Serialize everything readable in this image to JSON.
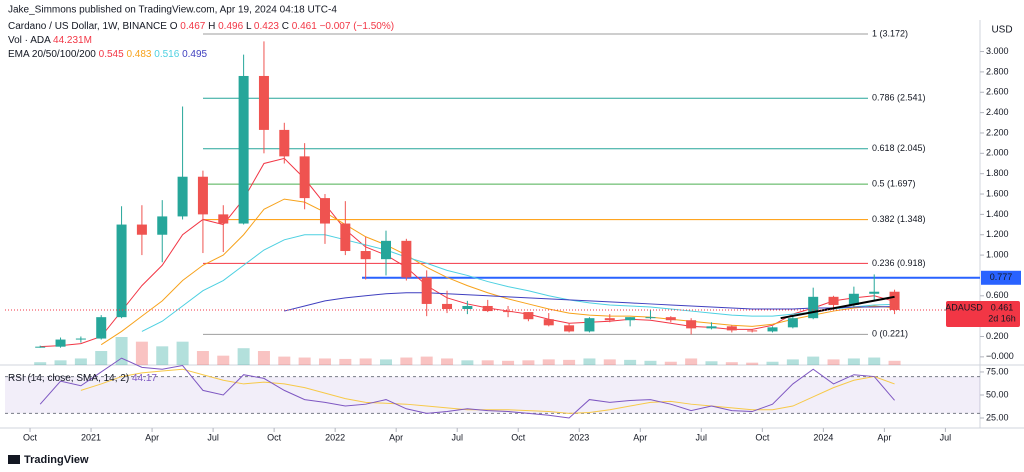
{
  "chart_data": {
    "type": "candlestick",
    "attribution": "Jake_Simmons published on TradingView.com, Apr 19, 2024 04:18 UTC-4",
    "title": "Cardano / US Dollar, 1W, BINANCE",
    "ohlc_legend": [
      {
        "label": "O",
        "value": 0.467,
        "color": "#f23645"
      },
      {
        "label": "H",
        "value": 0.496,
        "color": "#f23645"
      },
      {
        "label": "L",
        "value": 0.423,
        "color": "#f23645"
      },
      {
        "label": "C",
        "value": 0.461,
        "color": "#f23645"
      }
    ],
    "change": "−0.007 (−1.50%)",
    "volume_legend": {
      "label": "Vol · ADA",
      "value": "44.231M"
    },
    "ema_legend": {
      "label": "EMA 20/50/100/200",
      "values": [
        0.545,
        0.483,
        0.516,
        0.495
      ]
    },
    "currency": "USD",
    "footer": "TradingView",
    "xlim": [
      -1.23,
      46.7
    ],
    "xticks": [
      {
        "value": 0,
        "label": "Oct"
      },
      {
        "value": 3,
        "label": "2021"
      },
      {
        "value": 6,
        "label": "Apr"
      },
      {
        "value": 9,
        "label": "Jul"
      },
      {
        "value": 12,
        "label": "Oct"
      },
      {
        "value": 15,
        "label": "2022"
      },
      {
        "value": 18,
        "label": "Apr"
      },
      {
        "value": 21,
        "label": "Jul"
      },
      {
        "value": 24,
        "label": "Oct"
      },
      {
        "value": 27,
        "label": "2023"
      },
      {
        "value": 30,
        "label": "Apr"
      },
      {
        "value": 33,
        "label": "Jul"
      },
      {
        "value": 36,
        "label": "Oct"
      },
      {
        "value": 39,
        "label": "2024"
      },
      {
        "value": 42,
        "label": "Apr"
      },
      {
        "value": 45,
        "label": "Jul"
      }
    ],
    "ylim": [
      -0.08,
      3.31
    ],
    "yticks": [
      {
        "value": 0,
        "label": "−0.000"
      },
      {
        "value": 0.2,
        "label": "0.200"
      },
      {
        "value": 0.6,
        "label": "0.600"
      },
      {
        "value": 1,
        "label": "1.000"
      },
      {
        "value": 1.2,
        "label": "1.200"
      },
      {
        "value": 1.4,
        "label": "1.400"
      },
      {
        "value": 1.6,
        "label": "1.600"
      },
      {
        "value": 1.8,
        "label": "1.800"
      },
      {
        "value": 2,
        "label": "2.000"
      },
      {
        "value": 2.2,
        "label": "2.200"
      },
      {
        "value": 2.4,
        "label": "2.400"
      },
      {
        "value": 2.6,
        "label": "2.600"
      },
      {
        "value": 2.8,
        "label": "2.800"
      },
      {
        "value": 3,
        "label": "3.000"
      }
    ],
    "up_color": "#26a69a",
    "down_color": "#ef5350",
    "candles": [
      [
        0.1,
        0.11,
        0.09,
        0.1
      ],
      [
        0.1,
        0.19,
        0.09,
        0.17
      ],
      [
        0.17,
        0.2,
        0.14,
        0.18
      ],
      [
        0.18,
        0.41,
        0.17,
        0.39
      ],
      [
        0.39,
        1.48,
        0.38,
        1.3
      ],
      [
        1.3,
        1.49,
        1.0,
        1.2
      ],
      [
        1.2,
        1.54,
        0.93,
        1.38
      ],
      [
        1.38,
        2.46,
        1.35,
        1.77
      ],
      [
        1.77,
        1.83,
        1.02,
        1.4
      ],
      [
        1.4,
        1.49,
        1.03,
        1.31
      ],
      [
        1.31,
        2.97,
        1.3,
        2.76
      ],
      [
        2.76,
        3.1,
        2.0,
        2.23
      ],
      [
        2.23,
        2.3,
        1.9,
        1.97
      ],
      [
        1.97,
        2.1,
        1.45,
        1.56
      ],
      [
        1.56,
        1.6,
        1.11,
        1.31
      ],
      [
        1.31,
        1.53,
        1.0,
        1.04
      ],
      [
        1.04,
        1.18,
        0.76,
        0.96
      ],
      [
        0.96,
        1.24,
        0.8,
        1.14
      ],
      [
        1.14,
        1.16,
        0.75,
        0.78
      ],
      [
        0.78,
        0.85,
        0.4,
        0.52
      ],
      [
        0.52,
        0.65,
        0.43,
        0.47
      ],
      [
        0.47,
        0.55,
        0.42,
        0.5
      ],
      [
        0.5,
        0.56,
        0.44,
        0.45
      ],
      [
        0.45,
        0.5,
        0.39,
        0.44
      ],
      [
        0.44,
        0.44,
        0.35,
        0.37
      ],
      [
        0.37,
        0.43,
        0.3,
        0.31
      ],
      [
        0.31,
        0.33,
        0.24,
        0.25
      ],
      [
        0.25,
        0.39,
        0.24,
        0.38
      ],
      [
        0.38,
        0.42,
        0.34,
        0.36
      ],
      [
        0.36,
        0.39,
        0.3,
        0.39
      ],
      [
        0.39,
        0.46,
        0.37,
        0.39
      ],
      [
        0.39,
        0.4,
        0.34,
        0.36
      ],
      [
        0.36,
        0.38,
        0.22,
        0.28
      ],
      [
        0.28,
        0.34,
        0.27,
        0.3
      ],
      [
        0.3,
        0.31,
        0.24,
        0.26
      ],
      [
        0.26,
        0.27,
        0.24,
        0.25
      ],
      [
        0.25,
        0.3,
        0.24,
        0.29
      ],
      [
        0.29,
        0.4,
        0.28,
        0.38
      ],
      [
        0.38,
        0.68,
        0.37,
        0.59
      ],
      [
        0.59,
        0.6,
        0.46,
        0.51
      ],
      [
        0.51,
        0.69,
        0.49,
        0.62
      ],
      [
        0.62,
        0.81,
        0.55,
        0.64
      ],
      [
        0.64,
        0.66,
        0.42,
        0.461
      ]
    ],
    "volume": [
      300,
      500,
      700,
      1500,
      3000,
      2500,
      2000,
      2500,
      1500,
      1000,
      1800,
      1500,
      900,
      800,
      700,
      650,
      700,
      600,
      800,
      900,
      700,
      500,
      500,
      450,
      500,
      600,
      550,
      700,
      600,
      550,
      450,
      350,
      700,
      400,
      300,
      250,
      350,
      600,
      900,
      600,
      700,
      800,
      450
    ],
    "series": [
      {
        "name": "EMA 20",
        "color": "#f23645",
        "values": [
          0.1,
          0.11,
          0.13,
          0.2,
          0.45,
          0.7,
          0.9,
          1.2,
          1.35,
          1.3,
          1.55,
          1.9,
          1.95,
          1.75,
          1.5,
          1.25,
          1.08,
          1.0,
          0.88,
          0.7,
          0.58,
          0.52,
          0.48,
          0.45,
          0.42,
          0.37,
          0.33,
          0.34,
          0.35,
          0.37,
          0.36,
          0.33,
          0.3,
          0.29,
          0.27,
          0.27,
          0.31,
          0.42,
          0.48,
          0.55,
          0.58,
          0.6,
          0.545
        ]
      },
      {
        "name": "EMA 50",
        "color": "#f7a21b",
        "values": [
          null,
          null,
          null,
          0.12,
          0.25,
          0.4,
          0.55,
          0.75,
          0.9,
          1.0,
          1.2,
          1.45,
          1.55,
          1.52,
          1.42,
          1.3,
          1.18,
          1.1,
          1.0,
          0.88,
          0.78,
          0.7,
          0.63,
          0.57,
          0.52,
          0.47,
          0.43,
          0.41,
          0.4,
          0.4,
          0.39,
          0.37,
          0.35,
          0.33,
          0.31,
          0.3,
          0.32,
          0.37,
          0.41,
          0.45,
          0.48,
          0.5,
          0.483
        ]
      },
      {
        "name": "EMA 100",
        "color": "#4dd0e1",
        "values": [
          null,
          null,
          null,
          null,
          null,
          0.25,
          0.35,
          0.5,
          0.65,
          0.75,
          0.9,
          1.05,
          1.15,
          1.2,
          1.2,
          1.15,
          1.1,
          1.05,
          0.98,
          0.92,
          0.85,
          0.8,
          0.74,
          0.69,
          0.65,
          0.6,
          0.56,
          0.53,
          0.51,
          0.5,
          0.49,
          0.47,
          0.45,
          0.43,
          0.41,
          0.4,
          0.4,
          0.42,
          0.44,
          0.47,
          0.49,
          0.51,
          0.516
        ]
      },
      {
        "name": "EMA 200",
        "color": "#3f3fbf",
        "values": [
          null,
          null,
          null,
          null,
          null,
          null,
          null,
          null,
          null,
          null,
          null,
          null,
          0.45,
          0.5,
          0.55,
          0.58,
          0.6,
          0.62,
          0.63,
          0.63,
          0.62,
          0.61,
          0.6,
          0.59,
          0.58,
          0.57,
          0.56,
          0.55,
          0.54,
          0.53,
          0.52,
          0.51,
          0.5,
          0.49,
          0.48,
          0.47,
          0.47,
          0.47,
          0.48,
          0.48,
          0.49,
          0.49,
          0.495
        ]
      }
    ],
    "fib_levels": [
      {
        "label": "1 (3.172)",
        "value": 3.172,
        "color": "#9e9e9e"
      },
      {
        "label": "0.786 (2.541)",
        "value": 2.541,
        "color": "#26a69a"
      },
      {
        "label": "0.618 (2.045)",
        "value": 2.045,
        "color": "#26a69a"
      },
      {
        "label": "0.5 (1.697)",
        "value": 1.697,
        "color": "#4caf50"
      },
      {
        "label": "0.382 (1.348)",
        "value": 1.348,
        "color": "#ff9800"
      },
      {
        "label": "0.236 (0.918)",
        "value": 0.918,
        "color": "#f23645"
      },
      {
        "label": "0 (0.221)",
        "value": 0.221,
        "color": "#9e9e9e"
      }
    ],
    "horizontal_line": {
      "value": 0.777,
      "color": "#2962ff"
    },
    "trend_line": {
      "x": [
        36.9,
        42.5
      ],
      "values": [
        0.38,
        0.59
      ],
      "color": "#000000"
    },
    "price_label": {
      "symbol": "ADAUSD",
      "value": 0.461,
      "countdown": "2d 16h",
      "color": "#f23645"
    },
    "rsi": {
      "label": "RSI (14, close, SMA, 14, 2)",
      "last": 44.17,
      "color": "#7e57c2",
      "sma_color": "#f7c948",
      "ylim": [
        17.4,
        79.3
      ],
      "yticks": [
        {
          "value": 25,
          "label": "25.00"
        },
        {
          "value": 50,
          "label": "50.00"
        },
        {
          "value": 75,
          "label": "75.00"
        }
      ],
      "band": [
        30,
        70
      ],
      "values": [
        40,
        65,
        60,
        75,
        90,
        80,
        78,
        82,
        55,
        50,
        72,
        68,
        55,
        45,
        42,
        38,
        40,
        45,
        35,
        30,
        32,
        35,
        33,
        32,
        30,
        28,
        25,
        45,
        42,
        44,
        45,
        40,
        33,
        38,
        33,
        32,
        40,
        62,
        78,
        62,
        72,
        70,
        44.17
      ],
      "sma": [
        null,
        null,
        55,
        62,
        70,
        74,
        76,
        78,
        72,
        66,
        62,
        64,
        62,
        58,
        52,
        46,
        42,
        41,
        40,
        38,
        36,
        34,
        34,
        34,
        33,
        32,
        30,
        31,
        34,
        38,
        42,
        43,
        40,
        38,
        36,
        34,
        34,
        38,
        48,
        58,
        66,
        70,
        62
      ]
    }
  }
}
